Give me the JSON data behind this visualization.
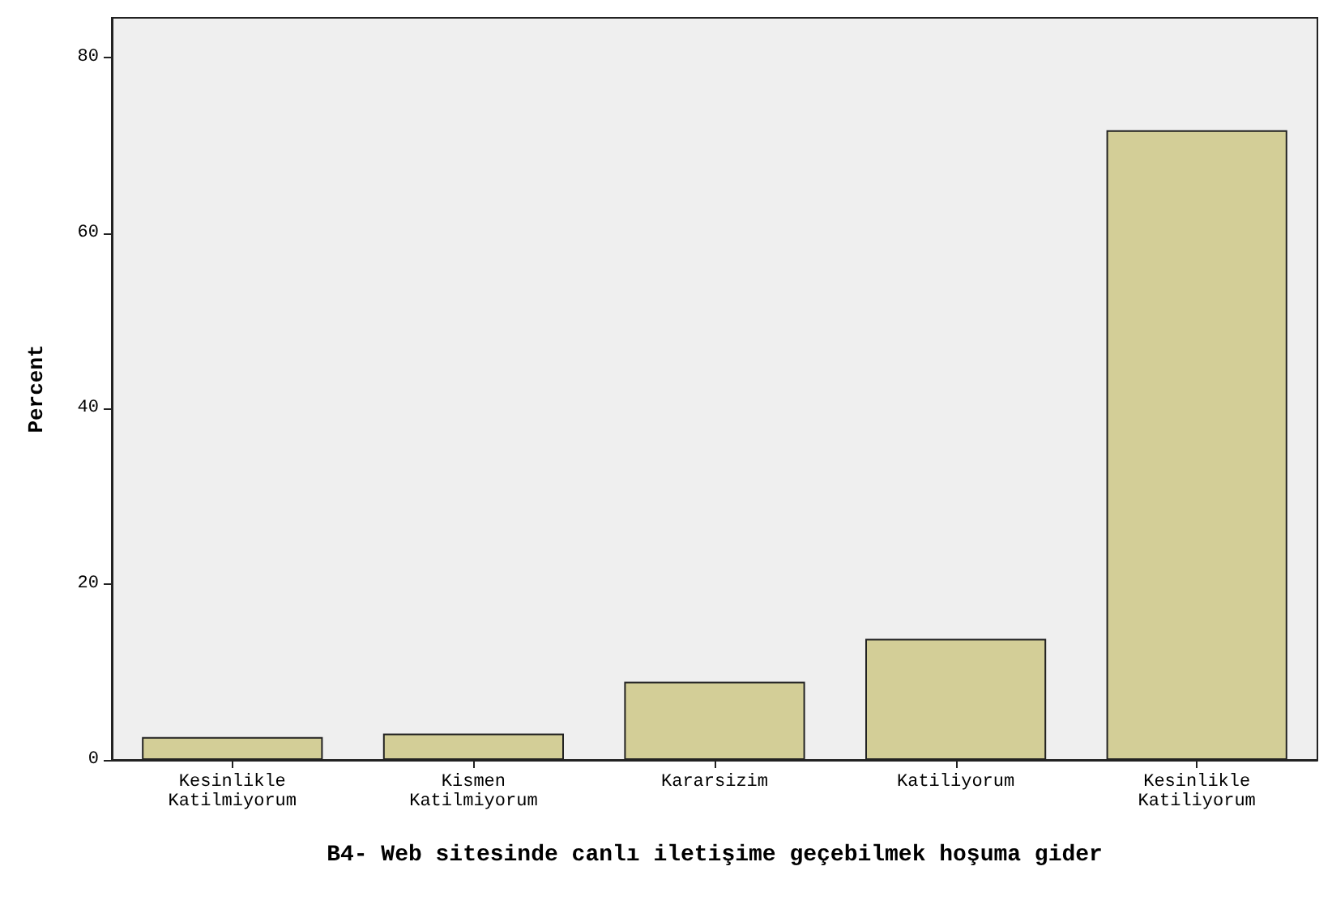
{
  "chart_data": {
    "type": "bar",
    "xlabel": "B4- Web sitesinde canlı iletişime geçebilmek hoşuma gider",
    "ylabel": "Percent",
    "categories": [
      "Kesinlikle\nKatilmiyorum",
      "Kismen\nKatilmiyorum",
      "Kararsizim",
      "Katiliyorum",
      "Kesinlikle\nKatiliyorum"
    ],
    "values": [
      2.6,
      3.0,
      8.9,
      13.8,
      71.7
    ],
    "color": "#d3ce97",
    "ylim": [
      0,
      84.5
    ],
    "yticks": [
      0,
      20,
      40,
      60,
      80
    ]
  }
}
